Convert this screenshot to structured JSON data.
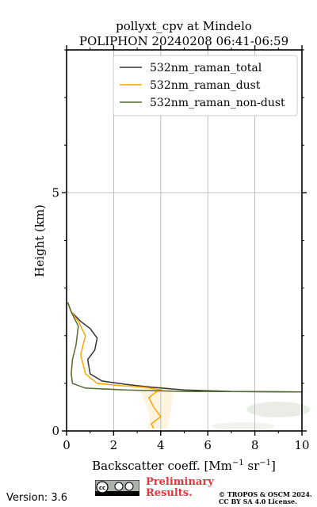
{
  "chart_data": {
    "type": "line",
    "title": "pollyxt_cpv at Mindelo",
    "subtitle": "POLIPHON 20240208 06:41-06:59",
    "xlabel": "Backscatter coeff. [Mm",
    "xlabel_sup1": "−1",
    "xlabel_mid": " sr",
    "xlabel_sup2": "−1",
    "xlabel_end": "]",
    "ylabel": "Height (km)",
    "xlim": [
      0,
      10
    ],
    "ylim": [
      0,
      8
    ],
    "x_ticks": [
      0,
      2,
      4,
      6,
      8,
      10
    ],
    "y_ticks": [
      0,
      5
    ],
    "grid": true,
    "legend_position": "top-right",
    "series": [
      {
        "name": "532nm_raman_total",
        "color": "#333333",
        "points": [
          [
            0.05,
            2.7
          ],
          [
            0.2,
            2.5
          ],
          [
            0.6,
            2.3
          ],
          [
            1.0,
            2.15
          ],
          [
            1.3,
            1.95
          ],
          [
            1.2,
            1.7
          ],
          [
            0.9,
            1.5
          ],
          [
            1.0,
            1.2
          ],
          [
            1.5,
            1.05
          ],
          [
            2.5,
            0.98
          ],
          [
            3.6,
            0.92
          ],
          [
            5.0,
            0.86
          ],
          [
            7.0,
            0.83
          ],
          [
            10.0,
            0.82
          ]
        ]
      },
      {
        "name": "532nm_raman_dust",
        "color": "#ffa500",
        "points": [
          [
            0.05,
            2.7
          ],
          [
            0.2,
            2.5
          ],
          [
            0.5,
            2.3
          ],
          [
            0.8,
            2.0
          ],
          [
            0.7,
            1.8
          ],
          [
            0.6,
            1.6
          ],
          [
            0.8,
            1.2
          ],
          [
            1.3,
            1.0
          ],
          [
            2.3,
            0.95
          ],
          [
            3.3,
            0.92
          ],
          [
            4.0,
            0.86
          ],
          [
            3.8,
            0.82
          ],
          [
            3.5,
            0.7
          ],
          [
            3.7,
            0.5
          ],
          [
            4.0,
            0.3
          ],
          [
            3.6,
            0.15
          ],
          [
            3.7,
            0.05
          ]
        ]
      },
      {
        "name": "532nm_raman_non-dust",
        "color": "#556b2f",
        "points": [
          [
            0.05,
            2.7
          ],
          [
            0.2,
            2.5
          ],
          [
            0.5,
            2.2
          ],
          [
            0.4,
            1.8
          ],
          [
            0.25,
            1.5
          ],
          [
            0.2,
            1.2
          ],
          [
            0.25,
            1.0
          ],
          [
            0.8,
            0.9
          ],
          [
            2.5,
            0.86
          ],
          [
            5.0,
            0.83
          ],
          [
            10.0,
            0.82
          ]
        ]
      }
    ]
  },
  "footer": {
    "version": "Version: 3.6",
    "preliminary": "Preliminary Results.",
    "copyright_line1": "© TROPOS & OSCM 2024.",
    "copyright_line2": "CC BY SA 4.0 License."
  }
}
